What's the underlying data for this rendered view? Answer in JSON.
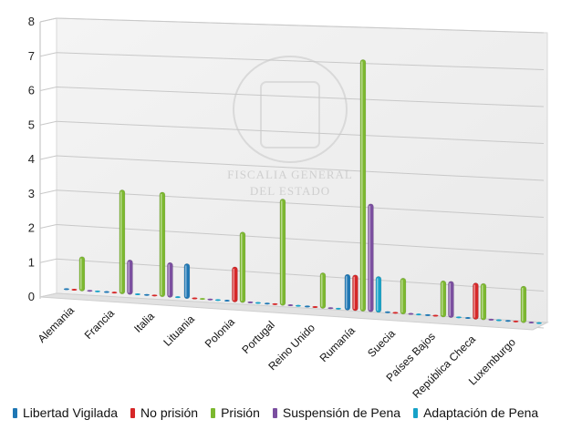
{
  "chart_data": {
    "type": "bar",
    "title": "",
    "xlabel": "",
    "ylabel": "",
    "ylim": [
      0,
      8
    ],
    "y_ticks": [
      "0",
      "1",
      "2",
      "3",
      "4",
      "5",
      "6",
      "7",
      "8"
    ],
    "grid": true,
    "legend_position": "bottom",
    "watermark_text": [
      "FISCALIA GENERAL",
      "DEL ESTADO"
    ],
    "categories": [
      "Alemania",
      "Francia",
      "Italia",
      "Lituania",
      "Polonia",
      "Portugal",
      "Reino Unido",
      "Rumanía",
      "Suecia",
      "Países Bajos",
      "República Checa",
      "Luxemburgo"
    ],
    "series": [
      {
        "name": "Libertad Vigilada",
        "color": "#1f77b4",
        "values": [
          0,
          0,
          0,
          1,
          0,
          0,
          0,
          1,
          0,
          0,
          0,
          0
        ]
      },
      {
        "name": "No prisión",
        "color": "#d62728",
        "values": [
          0,
          0,
          0,
          0,
          1,
          0,
          0,
          1,
          0,
          0,
          1,
          0
        ]
      },
      {
        "name": "Prisión",
        "color": "#7cb82f",
        "values": [
          1,
          3,
          3,
          0,
          2,
          3,
          1,
          7,
          1,
          1,
          1,
          1
        ]
      },
      {
        "name": "Suspensión de Pena",
        "color": "#7b4fa0",
        "values": [
          0,
          1,
          1,
          0,
          0,
          0,
          0,
          3,
          0,
          1,
          0,
          0
        ]
      },
      {
        "name": "Adaptación de Pena",
        "color": "#17a2c8",
        "values": [
          0,
          0,
          0,
          0,
          0,
          0,
          0,
          1,
          0,
          0,
          0,
          0
        ]
      }
    ]
  }
}
